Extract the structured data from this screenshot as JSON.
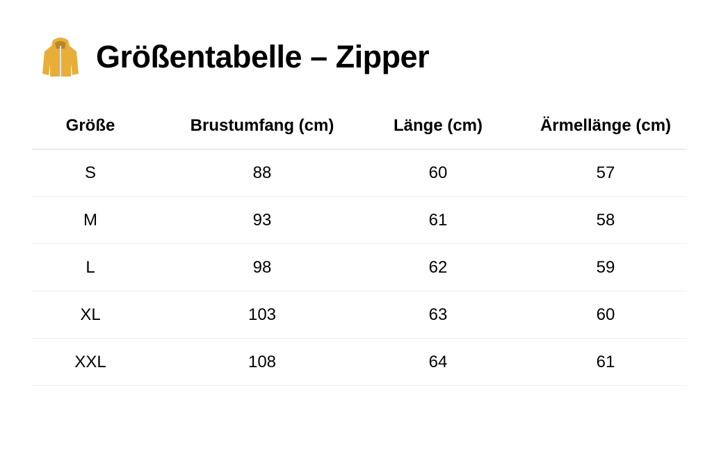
{
  "title": {
    "icon": "jacket-icon",
    "text": "Größentabelle – Zipper",
    "icon_color": "#E8AE3A"
  },
  "table": {
    "headers": [
      "Größe",
      "Brustumfang (cm)",
      "Länge (cm)",
      "Ärmellänge (cm)"
    ],
    "rows": [
      [
        "S",
        "88",
        "60",
        "57"
      ],
      [
        "M",
        "93",
        "61",
        "58"
      ],
      [
        "L",
        "98",
        "62",
        "59"
      ],
      [
        "XL",
        "103",
        "63",
        "60"
      ],
      [
        "XXL",
        "108",
        "64",
        "61"
      ]
    ]
  }
}
